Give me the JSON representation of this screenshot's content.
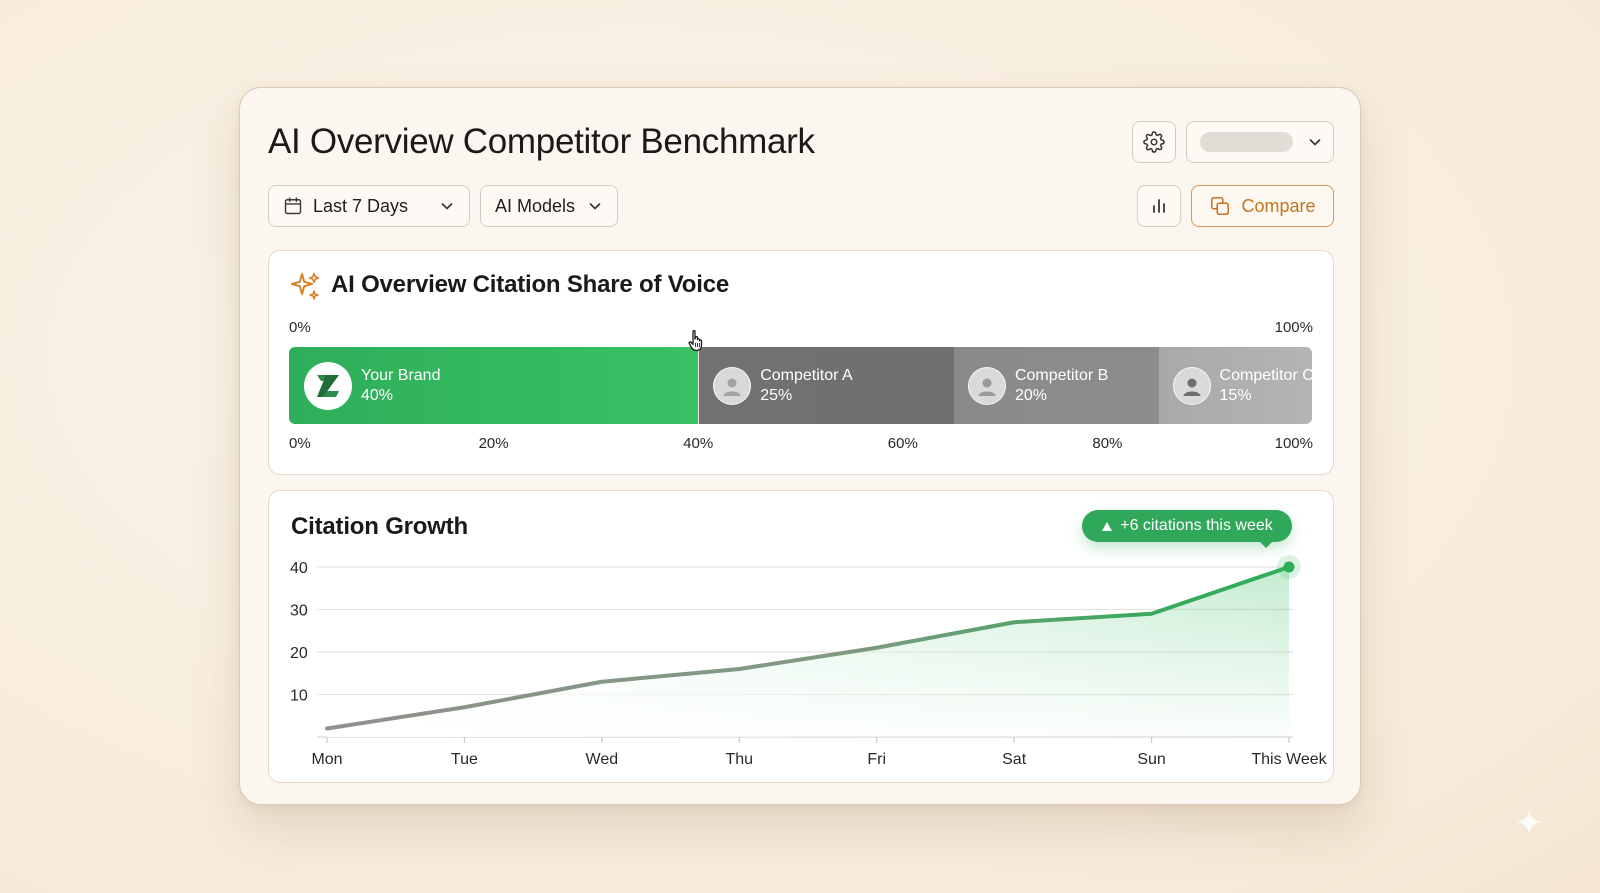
{
  "header": {
    "title": "AI Overview Competitor Benchmark"
  },
  "toolbar": {
    "date_range": "Last 7 Days",
    "models": "AI Models",
    "compare_label": "Compare"
  },
  "icons": {
    "settings": "gear-icon",
    "calendar": "calendar-icon",
    "chart": "bar-chart-icon",
    "compare": "compare-icon",
    "chevron": "chevron-down-icon",
    "sparkle": "sparkle-icon",
    "cursor": "hand-cursor-icon"
  },
  "colors": {
    "brand_green": "#2fae5a",
    "accent_orange": "#c4751f",
    "competitor_a": "#727272",
    "competitor_b": "#8a8a8a",
    "competitor_c": "#b0b0b0"
  },
  "share_of_voice": {
    "title": "AI Overview Citation Share of Voice",
    "scale_start": "0%",
    "scale_end": "100%",
    "axis_ticks": [
      "0%",
      "20%",
      "40%",
      "60%",
      "80%",
      "100%"
    ],
    "segments": [
      {
        "name": "Your Brand",
        "pct_label": "40%",
        "value": 40
      },
      {
        "name": "Competitor A",
        "pct_label": "25%",
        "value": 25
      },
      {
        "name": "Competitor B",
        "pct_label": "20%",
        "value": 20
      },
      {
        "name": "Competitor C",
        "pct_label": "15%",
        "value": 15
      }
    ]
  },
  "growth": {
    "title": "Citation Growth",
    "badge": "+6 citations this week"
  },
  "chart_data": {
    "type": "line",
    "title": "Citation Growth",
    "x": [
      "Mon",
      "Tue",
      "Wed",
      "Thu",
      "Fri",
      "Sat",
      "Sun",
      "This Week"
    ],
    "series": [
      {
        "values": [
          2,
          7,
          13,
          16,
          21,
          27,
          29,
          40
        ]
      }
    ],
    "yticks": [
      10,
      20,
      30,
      40
    ],
    "ylim": [
      0,
      40
    ],
    "grid": true
  }
}
